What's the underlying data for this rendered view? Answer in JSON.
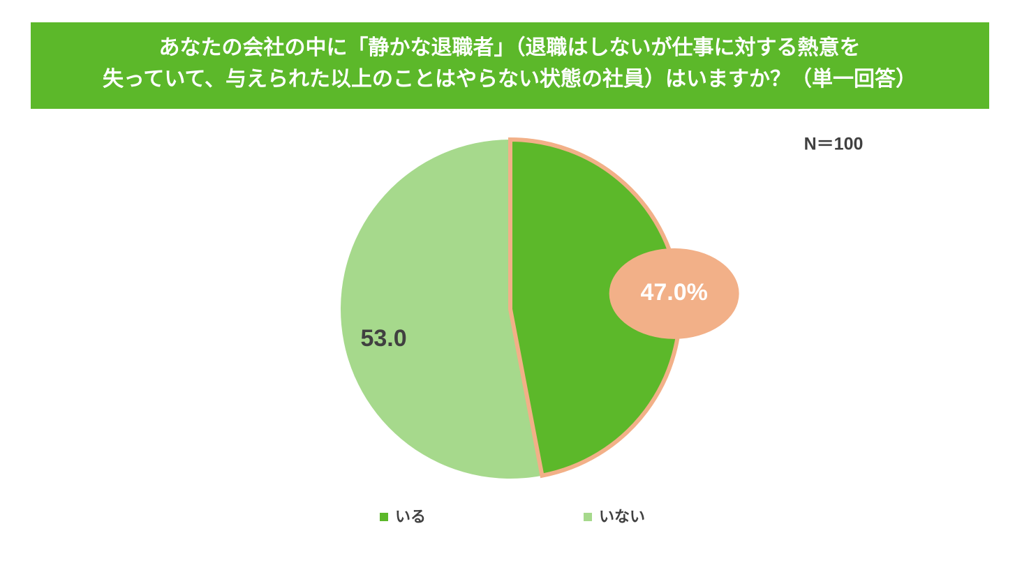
{
  "chart_data": {
    "type": "pie",
    "title": [
      "あなたの会社の中に「静かな退職者」（退職はしないが仕事に対する熱意を",
      "失っていて、与えられた以上のことはやらない状態の社員）はいますか？（単一回答）"
    ],
    "annotation": "N＝100",
    "categories": [
      "いる",
      "いない"
    ],
    "values": [
      47.0,
      53.0
    ],
    "value_labels": [
      "47.0%",
      "53.0"
    ],
    "colors": [
      "#5cb82a",
      "#a6d98c"
    ],
    "highlight": {
      "index": 0,
      "color": "#f2b088"
    },
    "legend": "bottom"
  }
}
